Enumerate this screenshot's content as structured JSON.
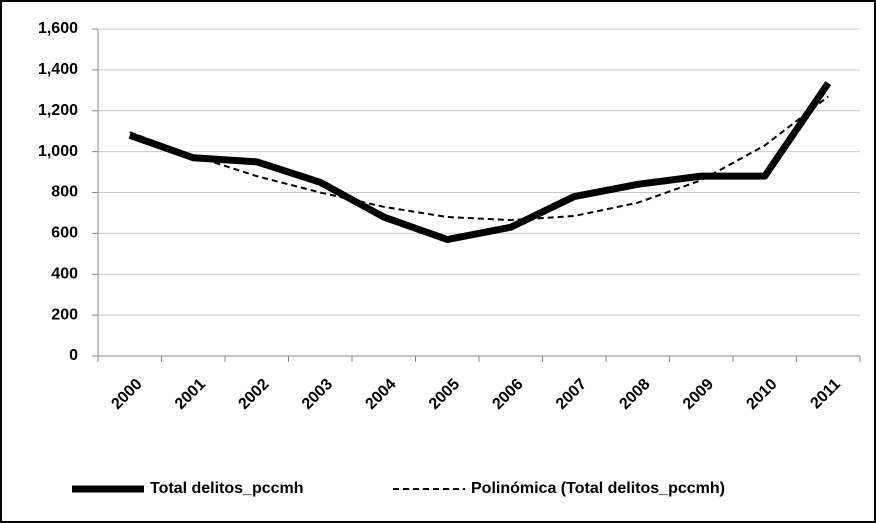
{
  "chart_data": {
    "type": "line",
    "categories": [
      "2000",
      "2001",
      "2002",
      "2003",
      "2004",
      "2005",
      "2006",
      "2007",
      "2008",
      "2009",
      "2010",
      "2011"
    ],
    "series": [
      {
        "name": "Total delitos_pccmh",
        "color": "#000000",
        "line_style": "solid",
        "values": [
          1080,
          970,
          950,
          850,
          680,
          570,
          630,
          780,
          840,
          880,
          880,
          1335
        ]
      },
      {
        "name": "Polinómica (Total delitos_pccmh)",
        "color": "#000000",
        "line_style": "dashed",
        "values": [
          1095,
          980,
          880,
          800,
          730,
          680,
          665,
          685,
          750,
          860,
          1030,
          1270
        ]
      }
    ],
    "ylim": [
      0,
      1600
    ],
    "yticks": [
      0,
      200,
      400,
      600,
      800,
      {
        "value": 1000,
        "label": "1,000"
      },
      {
        "value": 1200,
        "label": "1,200"
      },
      {
        "value": 1400,
        "label": "1,400"
      },
      {
        "value": 1600,
        "label": "1,600"
      }
    ],
    "grid": true,
    "legend": "bottom"
  }
}
